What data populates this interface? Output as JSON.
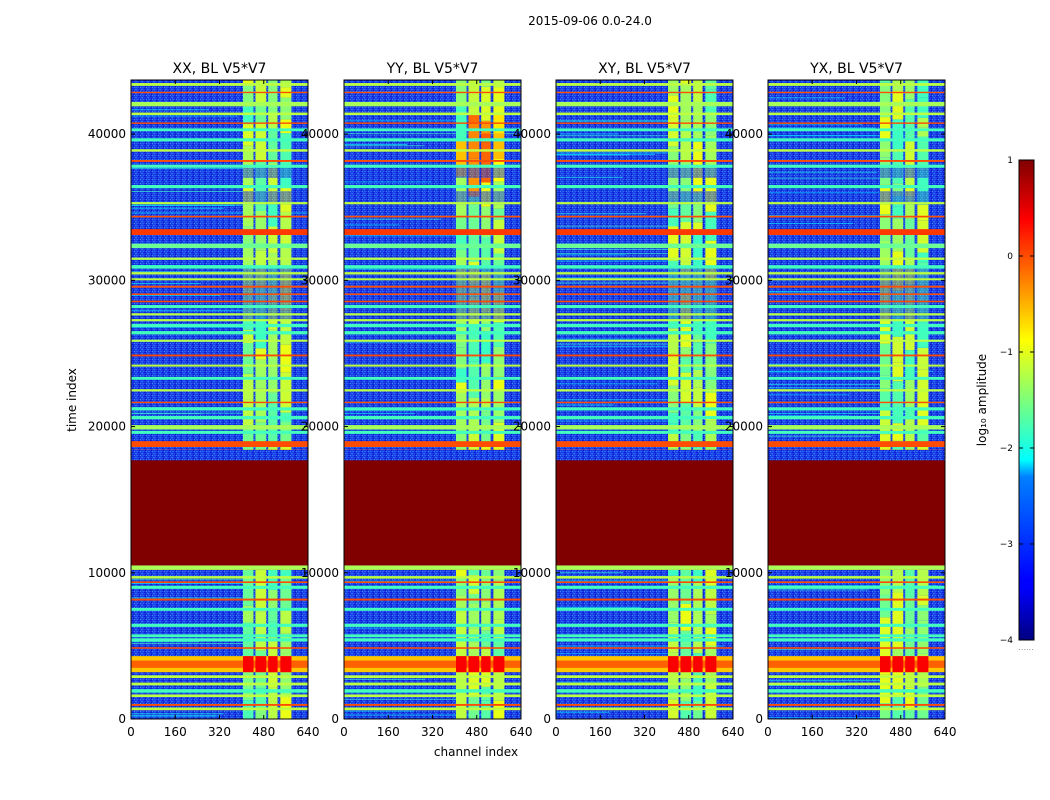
{
  "figure": {
    "suptitle": "2015-09-06 0.0-24.0",
    "xlabel": "channel index",
    "ylabel": "time index",
    "colorbar_label": "log₁₀ amplitude"
  },
  "chart_data": {
    "type": "heatmap",
    "title": "2015-09-06 0.0-24.0",
    "colormap": "jet",
    "xlabel": "channel index",
    "ylabel": "time index",
    "xlim": [
      0,
      640
    ],
    "ylim": [
      0,
      43700
    ],
    "xticks": [
      "0",
      "160",
      "320",
      "480",
      "640"
    ],
    "yticks": [
      "0",
      "10000",
      "20000",
      "30000",
      "40000"
    ],
    "colorbar": {
      "label": "log₁₀ amplitude",
      "range": [
        -4,
        1
      ],
      "ticks": [
        "1",
        "0",
        "−1",
        "−2",
        "−3",
        "−4"
      ]
    },
    "panels": [
      {
        "title": "XX, BL V5*V7",
        "baseline": "V5*V7",
        "polarization": "XX"
      },
      {
        "title": "YY, BL V5*V7",
        "baseline": "V5*V7",
        "polarization": "YY"
      },
      {
        "title": "XY, BL V5*V7",
        "baseline": "V5*V7",
        "polarization": "XY"
      },
      {
        "title": "YX, BL V5*V7",
        "baseline": "V5*V7",
        "polarization": "YX"
      }
    ],
    "background_level": -3.2,
    "flagged_time_range": [
      10500,
      17700
    ],
    "flagged_level": 1.0,
    "rfi_channel_bands": [
      [
        405,
        443
      ],
      [
        450,
        489
      ],
      [
        496,
        530
      ],
      [
        540,
        580
      ]
    ],
    "rfi_band_level": -1.4,
    "bright_time_ranges": [
      [
        18600,
        19000
      ],
      [
        19800,
        20100
      ],
      [
        33100,
        33500
      ],
      [
        41900,
        42200
      ]
    ],
    "strong_feature_time_range": [
      3200,
      4300
    ],
    "strong_feature_level": 0.1
  }
}
